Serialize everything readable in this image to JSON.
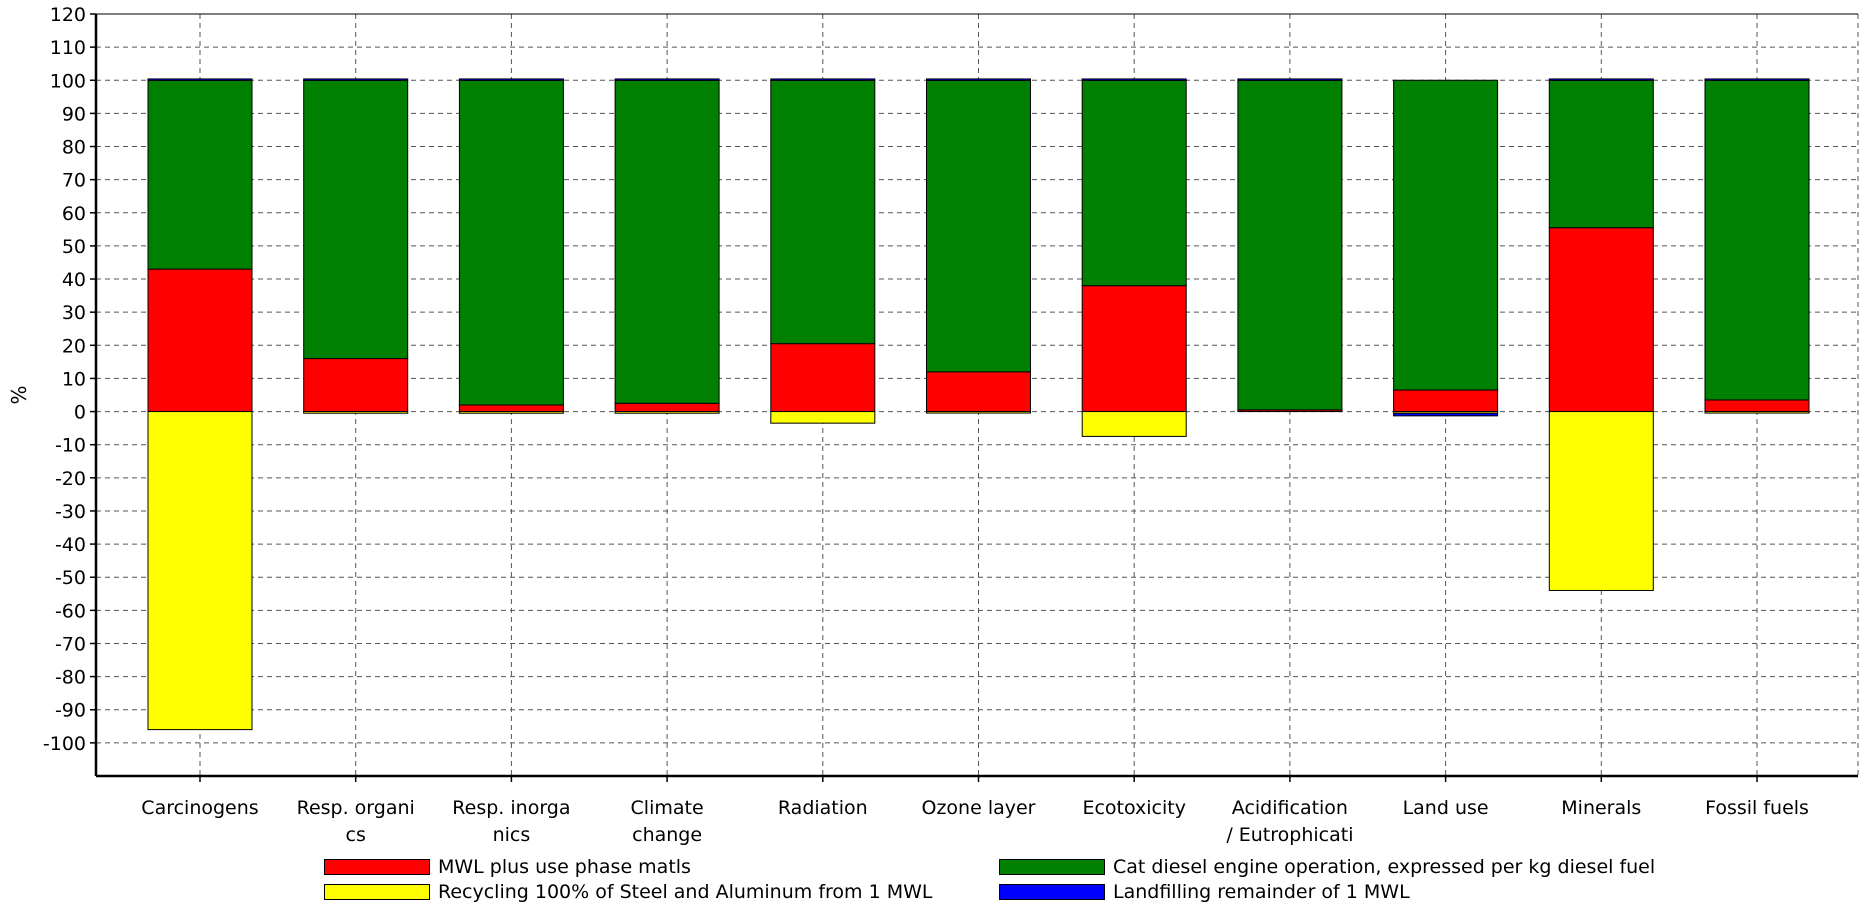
{
  "chart_data": {
    "type": "bar",
    "stacked": true,
    "ylabel": "%",
    "ylim": [
      -110,
      120
    ],
    "ytick_step": 10,
    "grid": true,
    "legend_position": "bottom",
    "categories": [
      [
        "Carcinogens"
      ],
      [
        "Resp. organi",
        "cs"
      ],
      [
        "Resp. inorga",
        "nics"
      ],
      [
        "Climate",
        "change"
      ],
      [
        "Radiation"
      ],
      [
        "Ozone layer"
      ],
      [
        "Ecotoxicity"
      ],
      [
        "Acidification",
        "/ Eutrophicati"
      ],
      [
        "Land use"
      ],
      [
        "Minerals"
      ],
      [
        "Fossil fuels"
      ]
    ],
    "series": [
      {
        "name": "MWL plus use phase matls",
        "color": "#ff0000",
        "values": [
          43,
          16,
          2,
          2.5,
          20.5,
          12,
          38,
          0.5,
          6.5,
          55.5,
          3.5
        ]
      },
      {
        "name": "Cat diesel engine operation, expressed per kg diesel fuel",
        "color": "#008000",
        "values": [
          57,
          84,
          98,
          97.5,
          79.5,
          88,
          62,
          99.5,
          93.5,
          44.5,
          96.5
        ]
      },
      {
        "name": "Recycling 100% of Steel and Aluminum from 1 MWL",
        "color": "#ffff00",
        "values": [
          -96,
          -0.5,
          -0.5,
          -0.5,
          -3.5,
          -0.3,
          -7.5,
          0,
          -0.5,
          -54,
          -0.3
        ]
      },
      {
        "name": "Landfilling remainder of 1 MWL",
        "color": "#0000ff",
        "values": [
          0.4,
          0.4,
          0.4,
          0.4,
          0.4,
          0.4,
          0.4,
          0.4,
          -0.8,
          0.4,
          0.4
        ]
      }
    ]
  }
}
